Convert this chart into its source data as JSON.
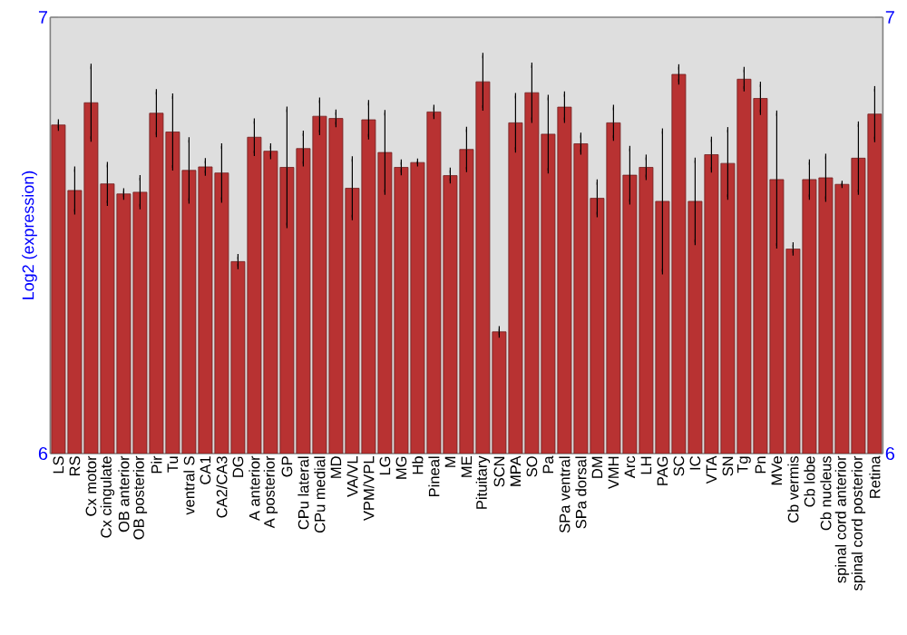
{
  "chart_data": {
    "type": "bar",
    "ylabel": "Log2 (expression)",
    "color": "#b83232",
    "categories": [
      "LS",
      "RS",
      "Cx motor",
      "Cx cingulate",
      "OB anterior",
      "OB posterior",
      "Pir",
      "Tu",
      "ventral S",
      "CA1",
      "CA2/CA3",
      "DG",
      "A anterior",
      "A posterior",
      "GP",
      "CPu lateral",
      "CPu medial",
      "MD",
      "VA/VL",
      "VPM/VPL",
      "LG",
      "MG",
      "Hb",
      "Pineal",
      "M",
      "ME",
      "Pituitary",
      "SCN",
      "MPA",
      "SO",
      "Pa",
      "SPa ventral",
      "SPa dorsal",
      "DM",
      "VMH",
      "Arc",
      "LH",
      "PAG",
      "SC",
      "IC",
      "VTA",
      "SN",
      "Tg",
      "Pn",
      "MVe",
      "Cb vermis",
      "Cb lobe",
      "Cb nucleus",
      "spinal cord anterior",
      "spinal cord posterior",
      "Retina"
    ],
    "values": [
      6.753,
      6.603,
      6.804,
      6.618,
      6.595,
      6.599,
      6.78,
      6.737,
      6.649,
      6.657,
      6.643,
      6.44,
      6.725,
      6.693,
      6.656,
      6.699,
      6.773,
      6.768,
      6.608,
      6.765,
      6.69,
      6.656,
      6.667,
      6.783,
      6.637,
      6.697,
      6.852,
      6.279,
      6.758,
      6.827,
      6.732,
      6.794,
      6.71,
      6.585,
      6.758,
      6.638,
      6.656,
      6.578,
      6.869,
      6.578,
      6.685,
      6.665,
      6.858,
      6.814,
      6.628,
      6.469,
      6.628,
      6.632,
      6.617,
      6.677,
      6.778
    ],
    "errors": [
      0.007,
      0.049,
      0.083,
      0.044,
      0.007,
      0.033,
      0.049,
      0.082,
      0.07,
      0.014,
      0.062,
      0.011,
      0.037,
      0.012,
      0.133,
      0.035,
      0.037,
      0.014,
      0.067,
      0.039,
      0.091,
      0.012,
      0.003,
      0.01,
      0.012,
      0.046,
      0.06,
      0.007,
      0.062,
      0.063,
      0.084,
      0.03,
      0.019,
      0.037,
      0.035,
      0.061,
      0.023,
      0.161,
      0.017,
      0.094,
      0.035,
      0.077,
      0.022,
      0.032,
      0.152,
      0.009,
      0.04,
      0.049,
      0.002,
      0.078,
      0.058
    ],
    "ylim": [
      6,
      7
    ],
    "yticks": [
      6,
      7
    ],
    "y2lim": [
      6,
      7
    ],
    "y2ticks": [
      6,
      7
    ]
  }
}
